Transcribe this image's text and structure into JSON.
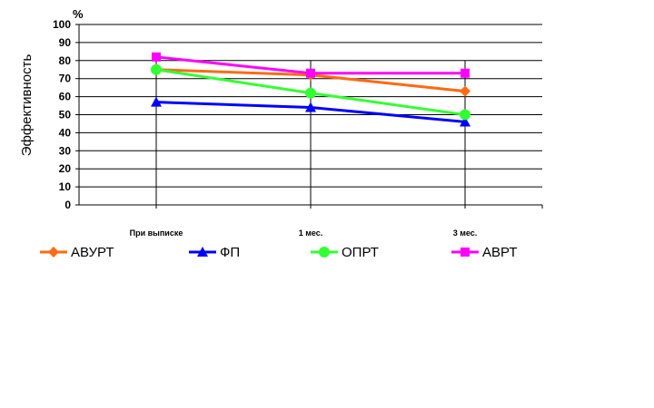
{
  "chart_data": {
    "type": "line",
    "title": "",
    "xlabel": "",
    "ylabel": "Эффективность",
    "y_unit": "%",
    "ylim": [
      0,
      100
    ],
    "y_ticks": [
      0,
      10,
      20,
      30,
      40,
      50,
      60,
      70,
      80,
      90,
      100
    ],
    "grid": true,
    "legend_position": "bottom",
    "categories": [
      "При выписке",
      "1 мес.",
      "3 мес."
    ],
    "series": [
      {
        "name": "АВУРТ",
        "values": [
          75,
          72,
          63
        ],
        "color": "#ff6a13",
        "marker": "diamond"
      },
      {
        "name": "ФП",
        "values": [
          57,
          54,
          46
        ],
        "color": "#0000ff",
        "marker": "triangle"
      },
      {
        "name": "ОПРТ",
        "values": [
          75,
          62,
          50
        ],
        "color": "#33ff33",
        "marker": "circle"
      },
      {
        "name": "АВРТ",
        "values": [
          82,
          73,
          73
        ],
        "color": "#ff00ff",
        "marker": "square"
      }
    ]
  }
}
